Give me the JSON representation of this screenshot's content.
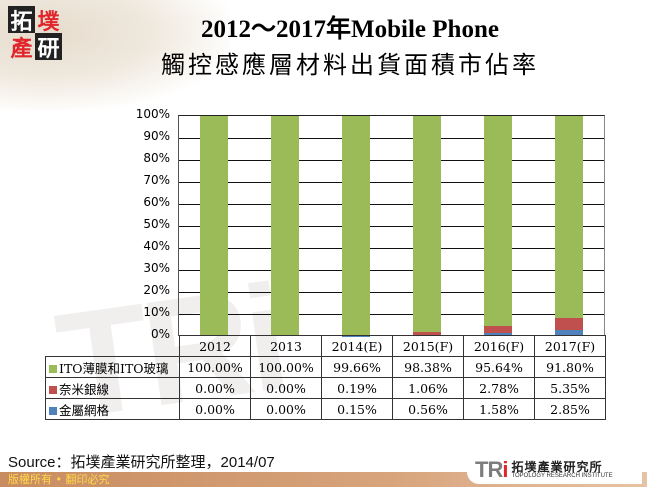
{
  "header": {
    "logo_chars": [
      "拓",
      "墣",
      "產",
      "研"
    ],
    "title_line1": "2012～2017年Mobile Phone",
    "title_line2": "觸控感應層材料出貨面積市佔率"
  },
  "watermark": "TRi",
  "colors": {
    "green": "#9BBB59",
    "red": "#C0504D",
    "blue": "#4F81BD"
  },
  "chart_data": {
    "type": "bar",
    "stacked": true,
    "normalized": true,
    "title": "2012～2017年Mobile Phone 觸控感應層材料出貨面積市佔率",
    "xlabel": "",
    "ylabel": "",
    "ylim": [
      0,
      100
    ],
    "yticks": [
      "0%",
      "10%",
      "20%",
      "30%",
      "40%",
      "50%",
      "60%",
      "70%",
      "80%",
      "90%",
      "100%"
    ],
    "grid": true,
    "legend_position": "data-table",
    "categories": [
      "2012",
      "2013",
      "2014(E)",
      "2015(F)",
      "2016(F)",
      "2017(F)"
    ],
    "series": [
      {
        "name": "ITO薄膜和ITO玻璃",
        "color": "#9BBB59",
        "values": [
          100.0,
          100.0,
          99.66,
          98.38,
          95.64,
          91.8
        ],
        "labels": [
          "100.00%",
          "100.00%",
          "99.66%",
          "98.38%",
          "95.64%",
          "91.80%"
        ]
      },
      {
        "name": "奈米銀線",
        "color": "#C0504D",
        "values": [
          0.0,
          0.0,
          0.19,
          1.06,
          2.78,
          5.35
        ],
        "labels": [
          "0.00%",
          "0.00%",
          "0.19%",
          "1.06%",
          "2.78%",
          "5.35%"
        ]
      },
      {
        "name": "金屬網格",
        "color": "#4F81BD",
        "values": [
          0.0,
          0.0,
          0.15,
          0.56,
          1.58,
          2.85
        ],
        "labels": [
          "0.00%",
          "0.00%",
          "0.15%",
          "0.56%",
          "1.58%",
          "2.85%"
        ]
      }
    ]
  },
  "footer": {
    "source": "Source：拓墣產業研究所整理，2014/07",
    "copyright": "版權所有 • 翻印必究",
    "org_mark": "TRi",
    "org_name_cn": "拓墣產業研究所",
    "org_name_en": "TOPOLOGY RESEARCH INSTITUTE"
  }
}
